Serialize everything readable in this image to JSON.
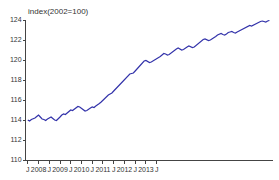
{
  "chart_data": {
    "type": "line",
    "ylabel": "index(2002=100)",
    "color": "#3333aa",
    "grid": false,
    "ylim": [
      110,
      124
    ],
    "yticks": [
      110,
      112,
      114,
      116,
      118,
      120,
      122,
      124
    ],
    "categories": [
      "J",
      null,
      null,
      null,
      null,
      null,
      "2008",
      null,
      null,
      null,
      null,
      null,
      "J",
      null,
      null,
      null,
      null,
      null,
      "2009",
      null,
      null,
      null,
      null,
      null,
      "J",
      null,
      null,
      null,
      null,
      null,
      "2010",
      null,
      null,
      null,
      null,
      null,
      "J",
      null,
      null,
      null,
      null,
      null,
      "2011",
      null,
      null,
      null,
      null,
      null,
      "J",
      null,
      null,
      null,
      null,
      null,
      "2012",
      null,
      null,
      null,
      null,
      null,
      "J",
      null,
      null,
      null,
      null,
      null,
      "2013",
      null,
      null,
      null,
      null,
      null,
      "J",
      null,
      null,
      null,
      null,
      null,
      null,
      null,
      null,
      null,
      null,
      null,
      null,
      null,
      null,
      null,
      null,
      null,
      null,
      null,
      null,
      null,
      null,
      null,
      null,
      null,
      null,
      null,
      null,
      null,
      null,
      null,
      null,
      null,
      null,
      null,
      null,
      null,
      null,
      null,
      null,
      null,
      null,
      null,
      null,
      null,
      null,
      null,
      null,
      null,
      null,
      null,
      null,
      null,
      null,
      null,
      null,
      null,
      null,
      null,
      null,
      null,
      null,
      null
    ],
    "values": [
      114.0,
      113.9,
      114.05,
      114.1,
      114.2,
      114.35,
      114.5,
      114.3,
      114.1,
      114.05,
      113.95,
      114.1,
      114.2,
      114.3,
      114.15,
      114.0,
      113.95,
      114.1,
      114.3,
      114.5,
      114.6,
      114.55,
      114.7,
      114.85,
      115.0,
      114.95,
      115.1,
      115.2,
      115.35,
      115.3,
      115.15,
      115.05,
      114.9,
      114.95,
      115.1,
      115.2,
      115.3,
      115.25,
      115.4,
      115.5,
      115.65,
      115.8,
      116.0,
      116.2,
      116.4,
      116.5,
      116.6,
      116.7,
      116.9,
      117.1,
      117.3,
      117.5,
      117.7,
      117.9,
      118.1,
      118.3,
      118.5,
      118.6,
      118.65,
      118.7,
      118.9,
      119.1,
      119.3,
      119.5,
      119.7,
      119.9,
      119.95,
      119.85,
      119.75,
      119.8,
      119.9,
      120.0,
      120.1,
      120.2,
      120.35,
      120.5,
      120.65,
      120.6,
      120.5,
      120.55,
      120.7,
      120.85,
      121.0,
      121.1,
      121.2,
      121.1,
      121.0,
      121.05,
      121.2,
      121.3,
      121.4,
      121.35,
      121.25,
      121.3,
      121.45,
      121.6,
      121.75,
      121.9,
      122.05,
      122.1,
      122.0,
      121.95,
      122.0,
      122.1,
      122.2,
      122.35,
      122.5,
      122.6,
      122.65,
      122.55,
      122.5,
      122.6,
      122.75,
      122.8,
      122.85,
      122.75,
      122.7,
      122.8,
      122.9,
      123.0,
      123.1,
      123.2,
      123.3,
      123.4,
      123.45,
      123.4,
      123.5,
      123.6,
      123.7,
      123.8,
      123.85,
      123.9,
      123.85,
      123.8,
      123.9,
      123.95
    ]
  }
}
